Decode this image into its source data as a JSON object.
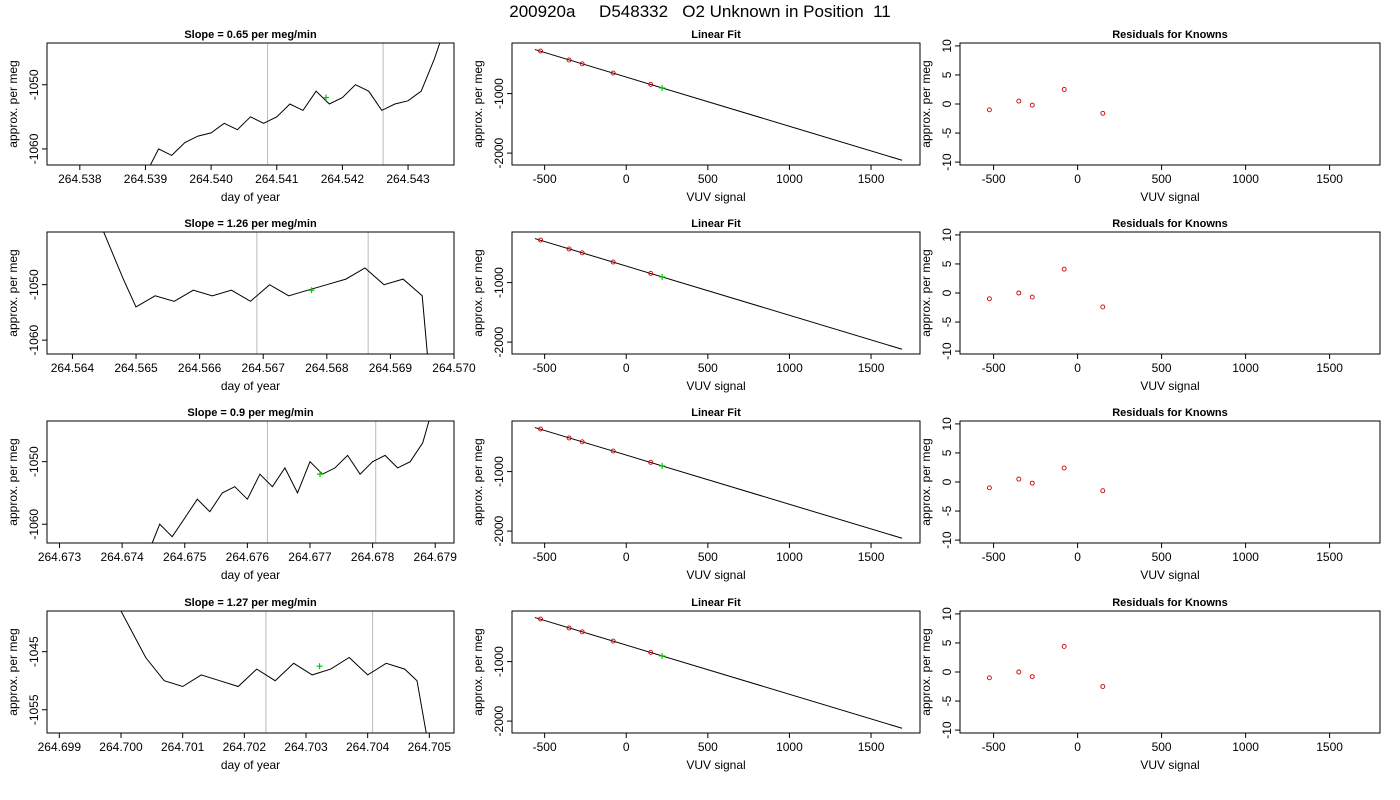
{
  "page": {
    "title": "200920a     D548332   O2 Unknown in Position  11"
  },
  "colors": {
    "trace": "#000000",
    "known_points": "#cc0000",
    "unknown_point": "#00cc00",
    "marker_lines": "#bbbbbb"
  },
  "chart_data": [
    {
      "type": "line",
      "panel": "time-series",
      "row": 1,
      "title": "Slope =  0.65  per meg/min",
      "xlabel": "day of year",
      "ylabel": "approx. per meg",
      "xlim": [
        264.5375,
        264.5437
      ],
      "ylim": [
        -1062.5,
        -1043.5
      ],
      "xticks": [
        264.538,
        264.539,
        264.54,
        264.541,
        264.542,
        264.543
      ],
      "xtick_labels": [
        "264.538",
        "264.539",
        "264.540",
        "264.541",
        "264.542",
        "264.543"
      ],
      "yticks": [
        -1060,
        -1050
      ],
      "ytick_labels": [
        "-1060",
        "-1050"
      ],
      "vlines": [
        264.54086,
        264.54262
      ],
      "series": [
        {
          "x": [
            264.539,
            264.5392,
            264.5394,
            264.5396,
            264.5398,
            264.54,
            264.5402,
            264.5404,
            264.5406,
            264.5408,
            264.541,
            264.5412,
            264.5414,
            264.5416,
            264.5418,
            264.542,
            264.5422,
            264.5424,
            264.5426,
            264.5428,
            264.543,
            264.5432,
            264.5434,
            264.5436
          ],
          "y": [
            -1064,
            -1060,
            -1061,
            -1059,
            -1058,
            -1057.5,
            -1056,
            -1057,
            -1055,
            -1056,
            -1055,
            -1053,
            -1054,
            -1051,
            -1053,
            -1052,
            -1050,
            -1051,
            -1054,
            -1053,
            -1052.5,
            -1051,
            -1046,
            -1040
          ]
        }
      ],
      "unknown_point": {
        "x": 264.54175,
        "y": -1052
      }
    },
    {
      "type": "scatter",
      "panel": "linear-fit",
      "row": 1,
      "title": "Linear Fit",
      "xlabel": "VUV signal",
      "ylabel": "approx. per meg",
      "xlim": [
        -700,
        1800
      ],
      "ylim": [
        -2200,
        -150
      ],
      "xticks": [
        -500,
        0,
        500,
        1000,
        1500
      ],
      "xtick_labels": [
        "-500",
        "0",
        "500",
        "1000",
        "1500"
      ],
      "yticks": [
        -2000,
        -1000
      ],
      "ytick_labels": [
        "-2000",
        "-1000"
      ],
      "fit_line": {
        "x": [
          -560,
          1690
        ],
        "y": [
          -260,
          -2120
        ]
      },
      "known_points": {
        "x": [
          -525,
          -350,
          -270,
          -80,
          150
        ],
        "y": [
          -285,
          -435,
          -500,
          -655,
          -845
        ]
      },
      "unknown_point": {
        "x": 220,
        "y": -905
      }
    },
    {
      "type": "scatter",
      "panel": "residuals",
      "row": 1,
      "title": "Residuals for Knowns",
      "xlabel": "VUV signal",
      "ylabel": "approx. per meg",
      "xlim": [
        -700,
        1800
      ],
      "ylim": [
        -10.5,
        10.5
      ],
      "xticks": [
        -500,
        0,
        500,
        1000,
        1500
      ],
      "xtick_labels": [
        "-500",
        "0",
        "500",
        "1000",
        "1500"
      ],
      "yticks": [
        -10,
        -5,
        0,
        5,
        10
      ],
      "ytick_labels": [
        "-10",
        "-5",
        "0",
        "5",
        "10"
      ],
      "points": {
        "x": [
          -525,
          -350,
          -270,
          -80,
          150
        ],
        "y": [
          -1,
          0.5,
          -0.2,
          2.5,
          -1.6
        ]
      }
    },
    {
      "type": "line",
      "panel": "time-series",
      "row": 2,
      "title": "Slope =  1.26  per meg/min",
      "xlabel": "day of year",
      "ylabel": "approx. per meg",
      "xlim": [
        264.5636,
        264.57
      ],
      "ylim": [
        -1062.5,
        -1040.5
      ],
      "xticks": [
        264.564,
        264.565,
        264.566,
        264.567,
        264.568,
        264.569,
        264.57
      ],
      "xtick_labels": [
        "264.564",
        "264.565",
        "264.566",
        "264.567",
        "264.568",
        "264.569",
        "264.570"
      ],
      "yticks": [
        -1060,
        -1050
      ],
      "ytick_labels": [
        "-1060",
        "-1050"
      ],
      "vlines": [
        264.5669,
        264.56865
      ],
      "series": [
        {
          "x": [
            264.5644,
            264.5648,
            264.565,
            264.5653,
            264.5656,
            264.5659,
            264.5662,
            264.5665,
            264.5668,
            264.5671,
            264.5674,
            264.5677,
            264.568,
            264.5683,
            264.5686,
            264.5689,
            264.5692,
            264.5695,
            264.5696
          ],
          "y": [
            -1038,
            -1049,
            -1054,
            -1052,
            -1053,
            -1051,
            -1052,
            -1051,
            -1053,
            -1050,
            -1052,
            -1051,
            -1050,
            -1049,
            -1047,
            -1050,
            -1049,
            -1052,
            -1065
          ]
        }
      ],
      "unknown_point": {
        "x": 264.56776,
        "y": -1051
      }
    },
    {
      "type": "scatter",
      "panel": "linear-fit",
      "row": 2,
      "title": "Linear Fit",
      "xlabel": "VUV signal",
      "ylabel": "approx. per meg",
      "xlim": [
        -700,
        1800
      ],
      "ylim": [
        -2200,
        -150
      ],
      "xticks": [
        -500,
        0,
        500,
        1000,
        1500
      ],
      "xtick_labels": [
        "-500",
        "0",
        "500",
        "1000",
        "1500"
      ],
      "yticks": [
        -2000,
        -1000
      ],
      "ytick_labels": [
        "-2000",
        "-1000"
      ],
      "fit_line": {
        "x": [
          -560,
          1690
        ],
        "y": [
          -260,
          -2120
        ]
      },
      "known_points": {
        "x": [
          -525,
          -350,
          -270,
          -80,
          150
        ],
        "y": [
          -285,
          -435,
          -500,
          -655,
          -845
        ]
      },
      "unknown_point": {
        "x": 220,
        "y": -905
      }
    },
    {
      "type": "scatter",
      "panel": "residuals",
      "row": 2,
      "title": "Residuals for Knowns",
      "xlabel": "VUV signal",
      "ylabel": "approx. per meg",
      "xlim": [
        -700,
        1800
      ],
      "ylim": [
        -10.5,
        10.5
      ],
      "xticks": [
        -500,
        0,
        500,
        1000,
        1500
      ],
      "xtick_labels": [
        "-500",
        "0",
        "500",
        "1000",
        "1500"
      ],
      "yticks": [
        -10,
        -5,
        0,
        5,
        10
      ],
      "ytick_labels": [
        "-10",
        "-5",
        "0",
        "5",
        "10"
      ],
      "points": {
        "x": [
          -525,
          -350,
          -270,
          -80,
          150
        ],
        "y": [
          -1,
          0,
          -0.7,
          4.1,
          -2.4
        ]
      }
    },
    {
      "type": "line",
      "panel": "time-series",
      "row": 3,
      "title": "Slope =  0.9  per meg/min",
      "xlabel": "day of year",
      "ylabel": "approx. per meg",
      "xlim": [
        264.6728,
        264.6793
      ],
      "ylim": [
        -1063,
        -1043.5
      ],
      "xticks": [
        264.673,
        264.674,
        264.675,
        264.676,
        264.677,
        264.678,
        264.679
      ],
      "xtick_labels": [
        "264.673",
        "264.674",
        "264.675",
        "264.676",
        "264.677",
        "264.678",
        "264.679"
      ],
      "yticks": [
        -1060,
        -1050
      ],
      "ytick_labels": [
        "-1060",
        "-1050"
      ],
      "vlines": [
        264.67632,
        264.67805
      ],
      "series": [
        {
          "x": [
            264.6744,
            264.6746,
            264.6748,
            264.675,
            264.6752,
            264.6754,
            264.6756,
            264.6758,
            264.676,
            264.6762,
            264.6764,
            264.6766,
            264.6768,
            264.677,
            264.6772,
            264.6774,
            264.6776,
            264.6778,
            264.678,
            264.6782,
            264.6784,
            264.6786,
            264.6788,
            264.679
          ],
          "y": [
            -1065,
            -1060,
            -1062,
            -1059,
            -1056,
            -1058,
            -1055,
            -1054,
            -1056,
            -1052,
            -1054,
            -1051,
            -1055,
            -1050,
            -1052,
            -1051,
            -1049,
            -1052,
            -1050,
            -1049,
            -1051,
            -1050,
            -1047,
            -1040
          ]
        }
      ],
      "unknown_point": {
        "x": 264.67716,
        "y": -1052
      }
    },
    {
      "type": "scatter",
      "panel": "linear-fit",
      "row": 3,
      "title": "Linear Fit",
      "xlabel": "VUV signal",
      "ylabel": "approx. per meg",
      "xlim": [
        -700,
        1800
      ],
      "ylim": [
        -2200,
        -150
      ],
      "xticks": [
        -500,
        0,
        500,
        1000,
        1500
      ],
      "xtick_labels": [
        "-500",
        "0",
        "500",
        "1000",
        "1500"
      ],
      "yticks": [
        -2000,
        -1000
      ],
      "ytick_labels": [
        "-2000",
        "-1000"
      ],
      "fit_line": {
        "x": [
          -560,
          1690
        ],
        "y": [
          -260,
          -2120
        ]
      },
      "known_points": {
        "x": [
          -525,
          -350,
          -270,
          -80,
          150
        ],
        "y": [
          -285,
          -435,
          -500,
          -655,
          -845
        ]
      },
      "unknown_point": {
        "x": 220,
        "y": -905
      }
    },
    {
      "type": "scatter",
      "panel": "residuals",
      "row": 3,
      "title": "Residuals for Knowns",
      "xlabel": "VUV signal",
      "ylabel": "approx. per meg",
      "xlim": [
        -700,
        1800
      ],
      "ylim": [
        -10.5,
        10.5
      ],
      "xticks": [
        -500,
        0,
        500,
        1000,
        1500
      ],
      "xtick_labels": [
        "-500",
        "0",
        "500",
        "1000",
        "1500"
      ],
      "yticks": [
        -10,
        -5,
        0,
        5,
        10
      ],
      "ytick_labels": [
        "-10",
        "-5",
        "0",
        "5",
        "10"
      ],
      "points": {
        "x": [
          -525,
          -350,
          -270,
          -80,
          150
        ],
        "y": [
          -1,
          0.5,
          -0.2,
          2.4,
          -1.5
        ]
      }
    },
    {
      "type": "line",
      "panel": "time-series",
      "row": 4,
      "title": "Slope =  1.27  per meg/min",
      "xlabel": "day of year",
      "ylabel": "approx. per meg",
      "xlim": [
        264.6988,
        264.7054
      ],
      "ylim": [
        -1059,
        -1038
      ],
      "xticks": [
        264.699,
        264.7,
        264.701,
        264.702,
        264.703,
        264.704,
        264.705
      ],
      "xtick_labels": [
        "264.699",
        "264.700",
        "264.701",
        "264.702",
        "264.703",
        "264.704",
        "264.705"
      ],
      "yticks": [
        -1055,
        -1045
      ],
      "ytick_labels": [
        "-1055",
        "-1045"
      ],
      "vlines": [
        264.70235,
        264.70408
      ],
      "series": [
        {
          "x": [
            264.6999,
            264.7004,
            264.7007,
            264.701,
            264.7013,
            264.7016,
            264.7019,
            264.7022,
            264.7025,
            264.7028,
            264.7031,
            264.7034,
            264.7037,
            264.704,
            264.7043,
            264.7046,
            264.7048,
            264.705
          ],
          "y": [
            -1036,
            -1046,
            -1050,
            -1051,
            -1049,
            -1050,
            -1051,
            -1048,
            -1050,
            -1047,
            -1049,
            -1048,
            -1046,
            -1049,
            -1047,
            -1048,
            -1050,
            -1062
          ]
        }
      ],
      "unknown_point": {
        "x": 264.70322,
        "y": -1047.5
      }
    },
    {
      "type": "scatter",
      "panel": "linear-fit",
      "row": 4,
      "title": "Linear Fit",
      "xlabel": "VUV signal",
      "ylabel": "approx. per meg",
      "xlim": [
        -700,
        1800
      ],
      "ylim": [
        -2200,
        -150
      ],
      "xticks": [
        -500,
        0,
        500,
        1000,
        1500
      ],
      "xtick_labels": [
        "-500",
        "0",
        "500",
        "1000",
        "1500"
      ],
      "yticks": [
        -2000,
        -1000
      ],
      "ytick_labels": [
        "-2000",
        "-1000"
      ],
      "fit_line": {
        "x": [
          -560,
          1690
        ],
        "y": [
          -260,
          -2120
        ]
      },
      "known_points": {
        "x": [
          -525,
          -350,
          -270,
          -80,
          150
        ],
        "y": [
          -285,
          -435,
          -500,
          -655,
          -845
        ]
      },
      "unknown_point": {
        "x": 220,
        "y": -905
      }
    },
    {
      "type": "scatter",
      "panel": "residuals",
      "row": 4,
      "title": "Residuals for Knowns",
      "xlabel": "VUV signal",
      "ylabel": "approx. per meg",
      "xlim": [
        -700,
        1800
      ],
      "ylim": [
        -10.5,
        10.5
      ],
      "xticks": [
        -500,
        0,
        500,
        1000,
        1500
      ],
      "xtick_labels": [
        "-500",
        "0",
        "500",
        "1000",
        "1500"
      ],
      "yticks": [
        -10,
        -5,
        0,
        5,
        10
      ],
      "ytick_labels": [
        "-10",
        "-5",
        "0",
        "5",
        "10"
      ],
      "points": {
        "x": [
          -525,
          -350,
          -270,
          -80,
          150
        ],
        "y": [
          -1,
          0,
          -0.8,
          4.4,
          -2.5
        ]
      }
    }
  ]
}
